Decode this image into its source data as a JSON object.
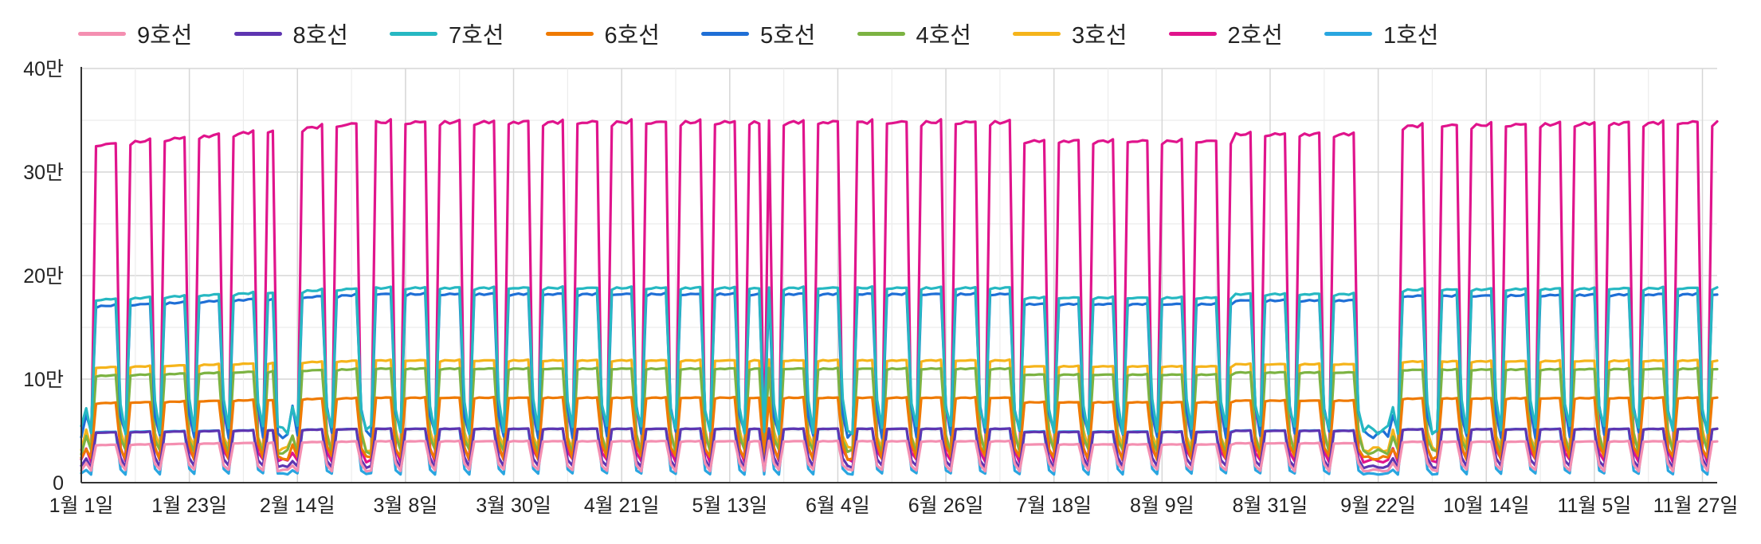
{
  "chart_data": {
    "type": "line",
    "title": "",
    "xlabel": "",
    "ylabel": "",
    "x_range": [
      "1월 1일",
      "11월 29일"
    ],
    "x_tick_labels": [
      "1월 1일",
      "1월 23일",
      "2월 14일",
      "3월 8일",
      "3월 30일",
      "4월 21일",
      "5월 13일",
      "6월 4일",
      "6월 26일",
      "7월 18일",
      "8월 9일",
      "8월 31일",
      "9월 22일",
      "10월 14일",
      "11월 5일",
      "11월 27일"
    ],
    "y_tick_labels": [
      "0",
      "10만",
      "20만",
      "30만",
      "40만"
    ],
    "ylim": [
      0,
      400000
    ],
    "grid": true,
    "legend_position": "top-left",
    "series": [
      {
        "name": "9호선",
        "color": "#f48fb1",
        "weekday_range": [
          26000,
          40000
        ],
        "weekend_level": 14000
      },
      {
        "name": "8호선",
        "color": "#5e35b1",
        "weekday_range": [
          38000,
          52000
        ],
        "weekend_level": 18000
      },
      {
        "name": "7호선",
        "color": "#26b8c2",
        "weekday_range": [
          145000,
          188000
        ],
        "weekend_level": 60000
      },
      {
        "name": "6호선",
        "color": "#ef7a00",
        "weekday_range": [
          62000,
          82000
        ],
        "weekend_level": 28000
      },
      {
        "name": "5호선",
        "color": "#1f6fd6",
        "weekday_range": [
          138000,
          182000
        ],
        "weekend_level": 55000
      },
      {
        "name": "4호선",
        "color": "#7cb342",
        "weekday_range": [
          84000,
          110000
        ],
        "weekend_level": 35000
      },
      {
        "name": "3호선",
        "color": "#f5b41b",
        "weekday_range": [
          92000,
          118000
        ],
        "weekend_level": 38000
      },
      {
        "name": "2호선",
        "color": "#e0148c",
        "weekday_range": [
          265000,
          348000
        ],
        "weekend_level": 25000
      },
      {
        "name": "1호선",
        "color": "#29a6e0",
        "weekday_range": [
          40000,
          52000
        ],
        "weekend_level": 10000
      }
    ]
  }
}
